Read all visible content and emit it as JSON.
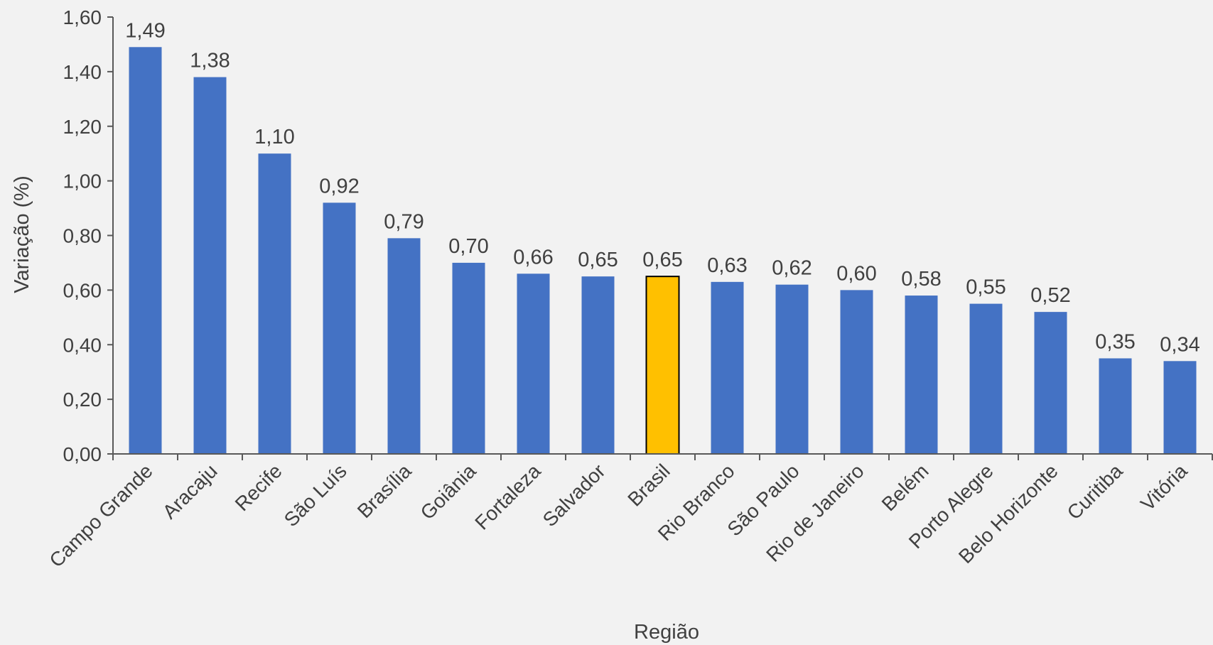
{
  "chart_data": {
    "type": "bar",
    "title": "",
    "xlabel": "Região",
    "ylabel": "Variação (%)",
    "ylim": [
      0,
      1.6
    ],
    "yticks": [
      "0,00",
      "0,20",
      "0,40",
      "0,60",
      "0,80",
      "1,00",
      "1,20",
      "1,40",
      "1,60"
    ],
    "grid": false,
    "legend": "none",
    "categories": [
      "Campo Grande",
      "Aracaju",
      "Recife",
      "São Luís",
      "Brasília",
      "Goiânia",
      "Fortaleza",
      "Salvador",
      "Brasil",
      "Rio Branco",
      "São Paulo",
      "Rio de Janeiro",
      "Belém",
      "Porto Alegre",
      "Belo Horizonte",
      "Curitiba",
      "Vitória"
    ],
    "values": [
      1.49,
      1.38,
      1.1,
      0.92,
      0.79,
      0.7,
      0.66,
      0.65,
      0.65,
      0.63,
      0.62,
      0.6,
      0.58,
      0.55,
      0.52,
      0.35,
      0.34
    ],
    "value_labels": [
      "1,49",
      "1,38",
      "1,10",
      "0,92",
      "0,79",
      "0,70",
      "0,66",
      "0,65",
      "0,65",
      "0,63",
      "0,62",
      "0,60",
      "0,58",
      "0,55",
      "0,52",
      "0,35",
      "0,34"
    ],
    "colors": {
      "bar": "#4472C4",
      "highlight": "#FFC000",
      "highlight_category": "Brasil"
    }
  }
}
